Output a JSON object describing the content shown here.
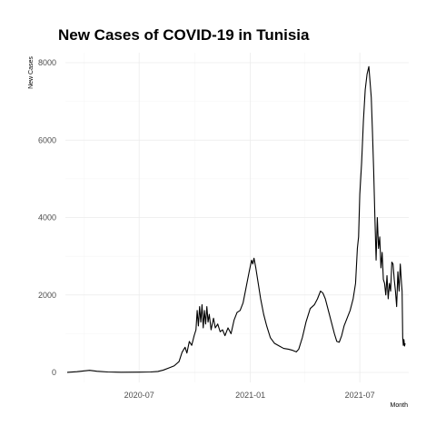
{
  "chart_data": {
    "type": "line",
    "title": "New Cases of COVID-19 in Tunisia",
    "xlabel": "Month",
    "ylabel": "New Cases",
    "ylim": [
      0,
      8000
    ],
    "xlim": [
      "2020-03-01",
      "2021-09-20"
    ],
    "grid": true,
    "y_ticks": [
      0,
      2000,
      4000,
      6000,
      8000
    ],
    "x_ticks": [
      {
        "date": "2020-07-01",
        "label": "2020-07"
      },
      {
        "date": "2021-01-01",
        "label": "2021-01"
      },
      {
        "date": "2021-07-01",
        "label": "2021-07"
      }
    ],
    "series": [
      {
        "color": "#000000",
        "points": [
          [
            "2020-03-04",
            2
          ],
          [
            "2020-03-20",
            20
          ],
          [
            "2020-04-01",
            40
          ],
          [
            "2020-04-10",
            55
          ],
          [
            "2020-04-22",
            30
          ],
          [
            "2020-05-10",
            12
          ],
          [
            "2020-06-01",
            5
          ],
          [
            "2020-07-01",
            8
          ],
          [
            "2020-07-20",
            12
          ],
          [
            "2020-08-01",
            25
          ],
          [
            "2020-08-10",
            60
          ],
          [
            "2020-08-20",
            120
          ],
          [
            "2020-08-28",
            170
          ],
          [
            "2020-09-05",
            280
          ],
          [
            "2020-09-10",
            520
          ],
          [
            "2020-09-15",
            650
          ],
          [
            "2020-09-18",
            500
          ],
          [
            "2020-09-22",
            800
          ],
          [
            "2020-09-26",
            700
          ],
          [
            "2020-09-30",
            950
          ],
          [
            "2020-10-03",
            1100
          ],
          [
            "2020-10-05",
            1600
          ],
          [
            "2020-10-07",
            1200
          ],
          [
            "2020-10-09",
            1700
          ],
          [
            "2020-10-11",
            1300
          ],
          [
            "2020-10-13",
            1750
          ],
          [
            "2020-10-15",
            1150
          ],
          [
            "2020-10-17",
            1600
          ],
          [
            "2020-10-19",
            1250
          ],
          [
            "2020-10-21",
            1700
          ],
          [
            "2020-10-23",
            1300
          ],
          [
            "2020-10-25",
            1500
          ],
          [
            "2020-10-28",
            1100
          ],
          [
            "2020-11-01",
            1400
          ],
          [
            "2020-11-04",
            1150
          ],
          [
            "2020-11-08",
            1250
          ],
          [
            "2020-11-12",
            1050
          ],
          [
            "2020-11-16",
            1100
          ],
          [
            "2020-11-20",
            950
          ],
          [
            "2020-11-25",
            1150
          ],
          [
            "2020-11-30",
            1000
          ],
          [
            "2020-12-05",
            1350
          ],
          [
            "2020-12-10",
            1550
          ],
          [
            "2020-12-15",
            1600
          ],
          [
            "2020-12-20",
            1800
          ],
          [
            "2020-12-25",
            2200
          ],
          [
            "2020-12-30",
            2600
          ],
          [
            "2021-01-03",
            2900
          ],
          [
            "2021-01-05",
            2800
          ],
          [
            "2021-01-07",
            2950
          ],
          [
            "2021-01-10",
            2700
          ],
          [
            "2021-01-14",
            2300
          ],
          [
            "2021-01-18",
            1900
          ],
          [
            "2021-01-23",
            1500
          ],
          [
            "2021-01-28",
            1200
          ],
          [
            "2021-02-03",
            900
          ],
          [
            "2021-02-10",
            750
          ],
          [
            "2021-02-18",
            680
          ],
          [
            "2021-02-25",
            620
          ],
          [
            "2021-03-05",
            600
          ],
          [
            "2021-03-12",
            570
          ],
          [
            "2021-03-18",
            530
          ],
          [
            "2021-03-22",
            600
          ],
          [
            "2021-03-28",
            900
          ],
          [
            "2021-04-03",
            1300
          ],
          [
            "2021-04-10",
            1650
          ],
          [
            "2021-04-17",
            1750
          ],
          [
            "2021-04-22",
            1900
          ],
          [
            "2021-04-27",
            2100
          ],
          [
            "2021-05-01",
            2050
          ],
          [
            "2021-05-05",
            1900
          ],
          [
            "2021-05-10",
            1600
          ],
          [
            "2021-05-15",
            1300
          ],
          [
            "2021-05-20",
            1000
          ],
          [
            "2021-05-24",
            800
          ],
          [
            "2021-05-28",
            780
          ],
          [
            "2021-06-01",
            950
          ],
          [
            "2021-06-05",
            1200
          ],
          [
            "2021-06-10",
            1400
          ],
          [
            "2021-06-15",
            1600
          ],
          [
            "2021-06-20",
            1900
          ],
          [
            "2021-06-24",
            2300
          ],
          [
            "2021-06-27",
            3200
          ],
          [
            "2021-06-29",
            3500
          ],
          [
            "2021-07-01",
            4600
          ],
          [
            "2021-07-04",
            5400
          ],
          [
            "2021-07-07",
            6500
          ],
          [
            "2021-07-10",
            7300
          ],
          [
            "2021-07-13",
            7700
          ],
          [
            "2021-07-16",
            7900
          ],
          [
            "2021-07-18",
            7500
          ],
          [
            "2021-07-20",
            7100
          ],
          [
            "2021-07-22",
            6200
          ],
          [
            "2021-07-24",
            5200
          ],
          [
            "2021-07-26",
            4000
          ],
          [
            "2021-07-28",
            2900
          ],
          [
            "2021-07-30",
            4000
          ],
          [
            "2021-08-01",
            3200
          ],
          [
            "2021-08-03",
            3500
          ],
          [
            "2021-08-05",
            2700
          ],
          [
            "2021-08-07",
            3100
          ],
          [
            "2021-08-09",
            2400
          ],
          [
            "2021-08-11",
            2300
          ],
          [
            "2021-08-13",
            2000
          ],
          [
            "2021-08-15",
            2500
          ],
          [
            "2021-08-17",
            1900
          ],
          [
            "2021-08-19",
            2300
          ],
          [
            "2021-08-21",
            2100
          ],
          [
            "2021-08-23",
            2850
          ],
          [
            "2021-08-25",
            2800
          ],
          [
            "2021-08-27",
            2400
          ],
          [
            "2021-08-29",
            2100
          ],
          [
            "2021-08-31",
            1700
          ],
          [
            "2021-09-02",
            2600
          ],
          [
            "2021-09-04",
            2100
          ],
          [
            "2021-09-06",
            2800
          ],
          [
            "2021-09-08",
            2300
          ],
          [
            "2021-09-09",
            2100
          ],
          [
            "2021-09-10",
            900
          ],
          [
            "2021-09-11",
            700
          ],
          [
            "2021-09-12",
            850
          ],
          [
            "2021-09-13",
            680
          ],
          [
            "2021-09-14",
            750
          ]
        ]
      }
    ]
  }
}
